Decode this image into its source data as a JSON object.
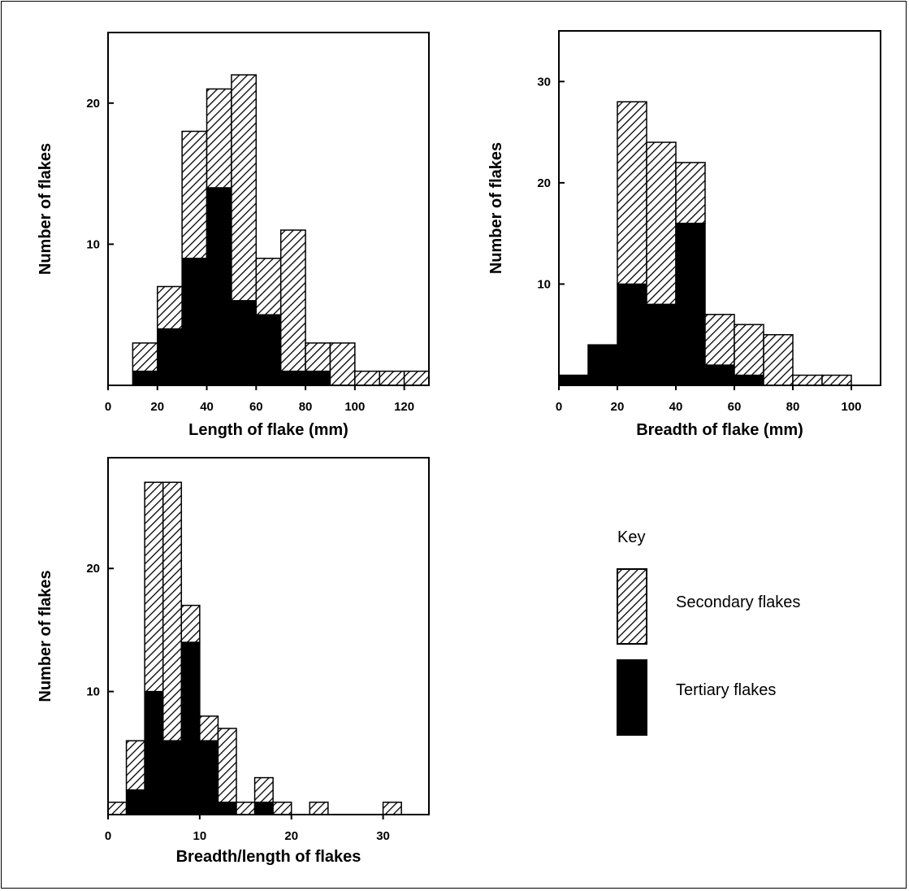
{
  "colors": {
    "secondary": "#ffffff",
    "tertiary": "#000000",
    "hatch": "#000000"
  },
  "key": {
    "title": "Key",
    "items": [
      {
        "label": "Secondary flakes",
        "pattern": "hatched"
      },
      {
        "label": "Tertiary flakes",
        "pattern": "solid"
      }
    ]
  },
  "chart_data": [
    {
      "type": "bar",
      "stacked": true,
      "xlabel": "Length of flake (mm)",
      "ylabel": "Number of flakes",
      "bin_width": 10,
      "xlim": [
        0,
        130
      ],
      "ylim": [
        0,
        25
      ],
      "xticks": [
        0,
        20,
        40,
        60,
        80,
        100,
        120
      ],
      "yticks": [
        10,
        20
      ],
      "bins_start": [
        10,
        20,
        30,
        40,
        50,
        60,
        70,
        80,
        90,
        100,
        110,
        120
      ],
      "series": [
        {
          "name": "Tertiary flakes",
          "values": [
            1,
            4,
            9,
            14,
            6,
            5,
            1,
            1,
            0,
            0,
            0,
            0
          ]
        },
        {
          "name": "Secondary flakes",
          "values": [
            2,
            3,
            9,
            7,
            16,
            4,
            10,
            2,
            3,
            1,
            1,
            1
          ]
        }
      ]
    },
    {
      "type": "bar",
      "stacked": true,
      "xlabel": "Breadth of flake (mm)",
      "ylabel": "Number of flakes",
      "bin_width": 10,
      "xlim": [
        0,
        110
      ],
      "ylim": [
        0,
        35
      ],
      "xticks": [
        0,
        20,
        40,
        60,
        80,
        100
      ],
      "yticks": [
        10,
        20,
        30
      ],
      "bins_start": [
        0,
        10,
        20,
        30,
        40,
        50,
        60,
        70,
        80,
        90
      ],
      "series": [
        {
          "name": "Tertiary flakes",
          "values": [
            1,
            4,
            10,
            8,
            16,
            2,
            1,
            0,
            0,
            0
          ]
        },
        {
          "name": "Secondary flakes",
          "values": [
            0,
            0,
            18,
            16,
            6,
            5,
            5,
            5,
            1,
            1
          ]
        }
      ]
    },
    {
      "type": "bar",
      "stacked": true,
      "xlabel": "Breadth/length of flakes",
      "ylabel": "Number of flakes",
      "bin_width": 2,
      "xlim": [
        0,
        35
      ],
      "ylim": [
        0,
        29
      ],
      "xticks": [
        0,
        10,
        20,
        30
      ],
      "yticks": [
        10,
        20
      ],
      "bins_start": [
        0,
        2,
        4,
        6,
        8,
        10,
        12,
        14,
        16,
        18,
        20,
        22,
        24,
        26,
        28,
        30
      ],
      "series": [
        {
          "name": "Tertiary flakes",
          "values": [
            0,
            2,
            10,
            6,
            14,
            6,
            1,
            0,
            1,
            0,
            0,
            0,
            0,
            0,
            0,
            0
          ]
        },
        {
          "name": "Secondary flakes",
          "values": [
            1,
            4,
            17,
            21,
            3,
            2,
            6,
            1,
            2,
            1,
            0,
            1,
            0,
            0,
            0,
            1
          ]
        }
      ]
    }
  ]
}
